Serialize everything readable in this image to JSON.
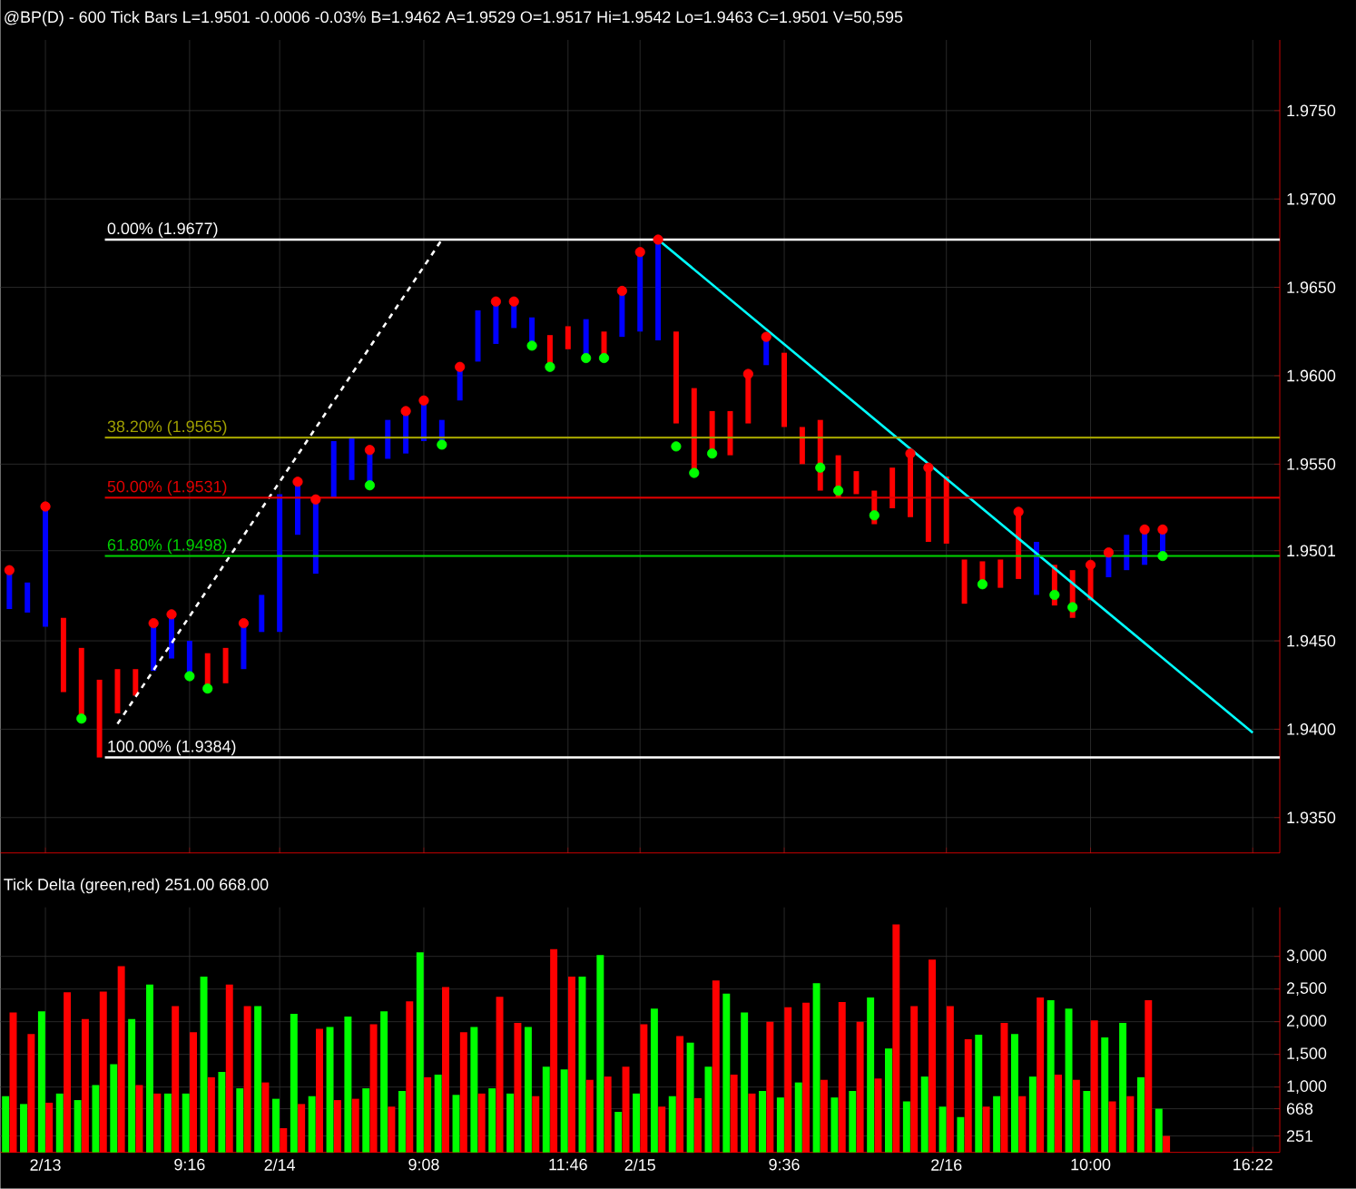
{
  "chart_data": [
    {
      "type": "bar",
      "title": "@BP(D) - 600 Tick Bars  L=1.9501  -0.0006  -0.03%  B=1.9462  A=1.9529  O=1.9517  Hi=1.9542  Lo=1.9463  C=1.9501  V=50,595",
      "categories": [
        null,
        null,
        null,
        null,
        null,
        null,
        null,
        null,
        null,
        null,
        null,
        null,
        null,
        null,
        null,
        null,
        null,
        null,
        null,
        null,
        null,
        null,
        null,
        null,
        null,
        null,
        null,
        null,
        null,
        null,
        null,
        null,
        null,
        null,
        null,
        null,
        null,
        null,
        null,
        null,
        null,
        null,
        null,
        null,
        null,
        null,
        null,
        null,
        null,
        null,
        null,
        null,
        null,
        null,
        null,
        null,
        null,
        null,
        null,
        null,
        null,
        null,
        null,
        null,
        null,
        null,
        null,
        null,
        null,
        null,
        null
      ],
      "series": [
        {
          "type": "bar",
          "base": [
            1.9468,
            1.9466,
            1.9458,
            1.9421,
            1.9406,
            1.9384,
            1.9409,
            1.9419,
            1.9433,
            1.944,
            1.943,
            1.9423,
            1.9426,
            1.9434,
            1.9455,
            1.9455,
            1.951,
            1.9488,
            1.9531,
            1.9541,
            1.9538,
            1.9553,
            1.9556,
            1.9563,
            1.9561,
            1.9586,
            1.9608,
            1.9618,
            1.9627,
            1.9617,
            1.9605,
            1.9615,
            1.961,
            1.961,
            1.9622,
            1.9625,
            1.962,
            1.9573,
            1.9545,
            1.9556,
            1.9555,
            1.9573,
            1.9606,
            1.9571,
            1.955,
            1.9535,
            1.9531,
            1.9533,
            1.9516,
            1.9525,
            1.952,
            1.9506,
            1.9505,
            1.9471,
            1.948,
            1.948,
            1.9485,
            1.9476,
            1.947,
            1.9463,
            1.9473,
            1.9486,
            1.949,
            1.9493,
            1.9496,
            null,
            null,
            null,
            null,
            null,
            null
          ],
          "values": [
            0.0022,
            0.0017,
            0.0068,
            0.0042,
            0.004,
            0.0044,
            0.0025,
            0.0015,
            0.0027,
            0.0025,
            0.002,
            0.002,
            0.002,
            0.0026,
            0.0021,
            0.0078,
            0.003,
            0.0042,
            0.0032,
            0.0024,
            0.002,
            0.0022,
            0.0024,
            0.0023,
            0.0014,
            0.0019,
            0.0029,
            0.0024,
            0.0015,
            0.0016,
            0.0018,
            0.0013,
            0.0022,
            0.0015,
            0.0026,
            0.0045,
            0.0057,
            0.0052,
            0.0048,
            0.0024,
            0.0025,
            0.0028,
            0.0016,
            0.0042,
            0.0021,
            0.004,
            0.0024,
            0.0013,
            0.0019,
            0.0023,
            0.0036,
            0.0042,
            0.0038,
            0.0025,
            0.0015,
            0.0016,
            0.0038,
            0.003,
            0.0023,
            0.0027,
            0.002,
            0.0014,
            0.002,
            0.002,
            0.0017,
            null,
            null,
            null,
            null,
            null,
            null
          ],
          "colors": [
            "#0000ff",
            "#0000ff",
            "#0000ff",
            "#ff0000",
            "#ff0000",
            "#ff0000",
            "#ff0000",
            "#ff0000",
            "#0000ff",
            "#0000ff",
            "#0000ff",
            "#ff0000",
            "#ff0000",
            "#0000ff",
            "#0000ff",
            "#0000ff",
            "#0000ff",
            "#0000ff",
            "#0000ff",
            "#0000ff",
            "#0000ff",
            "#0000ff",
            "#0000ff",
            "#0000ff",
            "#0000ff",
            "#0000ff",
            "#0000ff",
            "#0000ff",
            "#0000ff",
            "#0000ff",
            "#ff0000",
            "#ff0000",
            "#0000ff",
            "#ff0000",
            "#0000ff",
            "#0000ff",
            "#0000ff",
            "#ff0000",
            "#ff0000",
            "#ff0000",
            "#ff0000",
            "#ff0000",
            "#0000ff",
            "#ff0000",
            "#ff0000",
            "#ff0000",
            "#ff0000",
            "#ff0000",
            "#ff0000",
            "#ff0000",
            "#ff0000",
            "#ff0000",
            "#ff0000",
            "#ff0000",
            "#ff0000",
            "#ff0000",
            "#ff0000",
            "#0000ff",
            "#ff0000",
            "#ff0000",
            "#ff0000",
            "#0000ff",
            "#0000ff",
            "#0000ff",
            "#0000ff",
            null,
            null,
            null,
            null,
            null,
            null
          ]
        },
        {
          "type": "line",
          "color": "#ffffff",
          "line_style": "dashed",
          "values": [
            null,
            null,
            null,
            null,
            null,
            null,
            1.9403,
            null,
            null,
            null,
            null,
            null,
            null,
            null,
            null,
            null,
            null,
            null,
            null,
            null,
            null,
            null,
            null,
            null,
            1.9677,
            null,
            null,
            null,
            null,
            null,
            null,
            null,
            null,
            null,
            null,
            null,
            null,
            null,
            null,
            null,
            null,
            null,
            null,
            null,
            null,
            null,
            null,
            null,
            null,
            null,
            null,
            null,
            null,
            null,
            null,
            null,
            null,
            null,
            null,
            null,
            null,
            null,
            null,
            null,
            null,
            null,
            null,
            null,
            null,
            null,
            null
          ]
        },
        {
          "type": "line",
          "color": "#00ffff",
          "line_style": "solid",
          "values": [
            null,
            null,
            null,
            null,
            null,
            null,
            null,
            null,
            null,
            null,
            null,
            null,
            null,
            null,
            null,
            null,
            null,
            null,
            null,
            null,
            null,
            null,
            null,
            null,
            null,
            null,
            null,
            null,
            null,
            null,
            null,
            null,
            null,
            null,
            null,
            null,
            1.9677,
            null,
            null,
            null,
            null,
            null,
            null,
            null,
            null,
            null,
            null,
            null,
            null,
            null,
            null,
            null,
            null,
            null,
            null,
            null,
            null,
            null,
            null,
            null,
            null,
            null,
            null,
            null,
            null,
            null,
            null,
            null,
            null,
            1.9398,
            null
          ]
        },
        {
          "type": "scatter",
          "color": "#ff0000",
          "marker": "circle",
          "values": [
            1.949,
            null,
            1.9526,
            null,
            null,
            null,
            null,
            null,
            1.946,
            1.9465,
            null,
            null,
            null,
            1.946,
            null,
            null,
            1.954,
            1.953,
            null,
            null,
            1.9558,
            null,
            1.958,
            1.9586,
            null,
            1.9605,
            null,
            1.9642,
            1.9642,
            null,
            null,
            null,
            null,
            null,
            1.9648,
            1.967,
            1.9677,
            null,
            null,
            null,
            null,
            1.9601,
            1.9622,
            null,
            null,
            null,
            null,
            null,
            null,
            null,
            1.9556,
            1.9548,
            null,
            null,
            null,
            null,
            1.9523,
            null,
            null,
            null,
            1.9493,
            1.95,
            null,
            1.9513,
            1.9513,
            null,
            null,
            null,
            null,
            null,
            null
          ]
        },
        {
          "type": "scatter",
          "color": "#00ff00",
          "marker": "circle",
          "values": [
            null,
            null,
            null,
            null,
            1.9406,
            null,
            null,
            null,
            null,
            null,
            1.943,
            1.9423,
            null,
            null,
            null,
            null,
            null,
            null,
            null,
            null,
            1.9538,
            null,
            null,
            null,
            1.9561,
            null,
            null,
            null,
            null,
            1.9617,
            1.9605,
            null,
            1.961,
            1.961,
            null,
            null,
            null,
            1.956,
            1.9545,
            1.9556,
            null,
            null,
            null,
            null,
            null,
            1.9548,
            1.9535,
            null,
            1.9521,
            null,
            null,
            null,
            null,
            null,
            1.9482,
            null,
            null,
            null,
            1.9476,
            1.9469,
            null,
            null,
            null,
            null,
            1.9498,
            null,
            null,
            null,
            null,
            null,
            null
          ]
        }
      ],
      "ylim": [
        1.933,
        1.979
      ],
      "yticks": [
        {
          "value": 1.935,
          "label": "1.9350"
        },
        {
          "value": 1.94,
          "label": "1.9400"
        },
        {
          "value": 1.945,
          "label": "1.9450"
        },
        1.9501,
        {
          "value": 1.955,
          "label": "1.9550"
        },
        {
          "value": 1.96,
          "label": "1.9600"
        },
        {
          "value": 1.965,
          "label": "1.9650"
        },
        {
          "value": 1.97,
          "label": "1.9700"
        },
        {
          "value": 1.975,
          "label": "1.9750"
        }
      ],
      "ref_lines": [
        {
          "axis": "y",
          "value": 1.9677,
          "label": "0.00% (1.9677)",
          "color": "#ffffff"
        },
        {
          "axis": "y",
          "value": 1.9565,
          "label": "38.20% (1.9565)",
          "color": "#a0a000"
        },
        {
          "axis": "y",
          "value": 1.9531,
          "label": "50.00% (1.9531)",
          "color": "#e00000"
        },
        {
          "axis": "y",
          "value": 1.9498,
          "label": "61.80% (1.9498)",
          "color": "#00d000"
        },
        {
          "axis": "y",
          "value": 1.9384,
          "label": "100.00% (1.9384)",
          "color": "#ffffff"
        }
      ],
      "grid": true,
      "tick_labels": "y"
    },
    {
      "type": "bar",
      "title": "Tick Delta (green,red)  251.00  668.00",
      "categories": [
        null,
        null,
        "2/13",
        null,
        null,
        null,
        null,
        null,
        null,
        null,
        "9:16",
        null,
        null,
        null,
        null,
        "2/14",
        null,
        null,
        null,
        null,
        null,
        null,
        null,
        "9:08",
        null,
        null,
        null,
        null,
        null,
        null,
        null,
        "11:46",
        null,
        null,
        null,
        "2/15",
        null,
        null,
        null,
        null,
        null,
        null,
        null,
        "9:36",
        null,
        null,
        null,
        null,
        null,
        null,
        null,
        null,
        "2/16",
        null,
        null,
        null,
        null,
        null,
        null,
        null,
        "10:00",
        null,
        null,
        null,
        null,
        null,
        null,
        null,
        null,
        "16:22",
        null
      ],
      "series": [
        {
          "color": "#00ff00",
          "values": [
            860,
            740,
            2160,
            900,
            800,
            1030,
            1350,
            2040,
            2570,
            900,
            900,
            2690,
            1230,
            980,
            2240,
            820,
            2120,
            860,
            1920,
            2080,
            980,
            2160,
            940,
            3060,
            1190,
            880,
            1920,
            980,
            900,
            1920,
            1310,
            1270,
            2690,
            3020,
            620,
            900,
            2200,
            860,
            1680,
            1310,
            2430,
            2140,
            940,
            840,
            1070,
            2590,
            840,
            940,
            2370,
            1590,
            780,
            1160,
            700,
            540,
            1800,
            860,
            1810,
            1160,
            2330,
            2200,
            940,
            1760,
            1980,
            1150,
            668,
            null,
            null,
            null,
            null,
            null,
            null
          ]
        },
        {
          "color": "#ff0000",
          "values": [
            2140,
            1810,
            760,
            2450,
            2040,
            2460,
            2850,
            1030,
            900,
            2240,
            1840,
            1150,
            2570,
            2240,
            1070,
            370,
            740,
            1890,
            800,
            820,
            1960,
            700,
            2310,
            1150,
            2530,
            1840,
            900,
            2380,
            1980,
            860,
            3110,
            2690,
            1110,
            1160,
            1310,
            1960,
            700,
            1780,
            830,
            2630,
            1190,
            900,
            2000,
            2220,
            2290,
            1110,
            2300,
            2000,
            1130,
            3490,
            2240,
            2950,
            2240,
            1730,
            700,
            1980,
            860,
            2370,
            1190,
            1110,
            2020,
            780,
            860,
            2330,
            251,
            null,
            null,
            null,
            null,
            null,
            null
          ]
        }
      ],
      "ylim": [
        0,
        3750
      ],
      "yticks": [
        251,
        668,
        {
          "value": 1000,
          "label": "1,000"
        },
        {
          "value": 1500,
          "label": "1,500"
        },
        {
          "value": 2000,
          "label": "2,000"
        },
        {
          "value": 2500,
          "label": "2,500"
        },
        {
          "value": 3000,
          "label": "3,000"
        }
      ],
      "grid": true
    }
  ]
}
